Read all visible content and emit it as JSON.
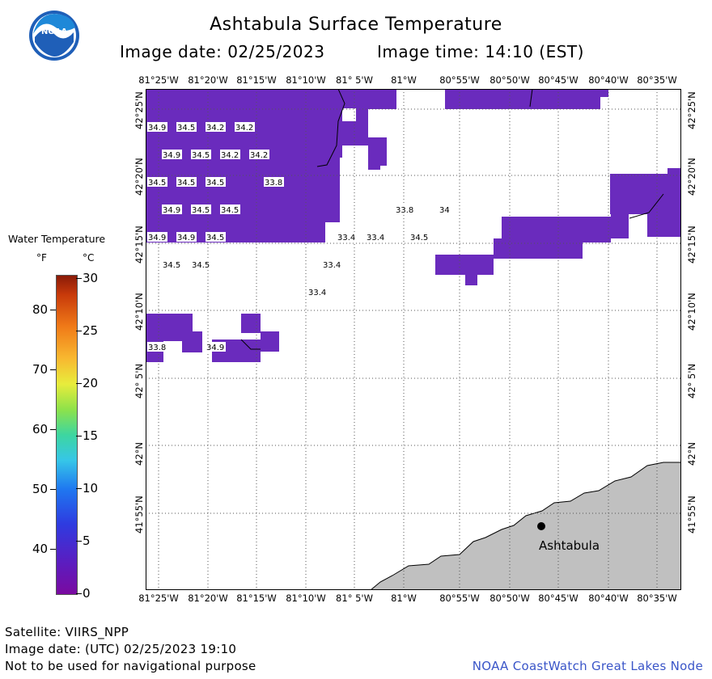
{
  "header": {
    "title": "Ashtabula Surface Temperature",
    "image_date": "Image date: 02/25/2023",
    "image_time": "Image time: 14:10 (EST)",
    "logo_text": "NOAA"
  },
  "axes": {
    "lon_labels": [
      "81°25'W",
      "81°20'W",
      "81°15'W",
      "81°10'W",
      "81° 5'W",
      "81°W",
      "80°55'W",
      "80°50'W",
      "80°45'W",
      "80°40'W",
      "80°35'W"
    ],
    "lat_labels": [
      "42°25'N",
      "42°20'N",
      "42°15'N",
      "42°10'N",
      "42° 5'N",
      "42°N",
      "41°55'N"
    ]
  },
  "legend": {
    "title": "Water Temperature",
    "unit_f": "°F",
    "unit_c": "°C",
    "f_ticks": [
      "80",
      "70",
      "60",
      "50",
      "40"
    ],
    "c_ticks": [
      "30",
      "25",
      "20",
      "15",
      "10",
      "5",
      "0"
    ]
  },
  "map": {
    "land_color": "#c0c0c0",
    "water_color": "#6a2bbd",
    "city_label": "Ashtabula",
    "temperature_labels": [
      {
        "text": "34.9",
        "col": 0,
        "row": 1
      },
      {
        "text": "34.5",
        "col": 2,
        "row": 1
      },
      {
        "text": "34.2",
        "col": 4,
        "row": 1
      },
      {
        "text": "34.2",
        "col": 6,
        "row": 1
      },
      {
        "text": "34.9",
        "col": 1,
        "row": 3
      },
      {
        "text": "34.5",
        "col": 3,
        "row": 3
      },
      {
        "text": "34.2",
        "col": 5,
        "row": 3
      },
      {
        "text": "34.2",
        "col": 7,
        "row": 3
      },
      {
        "text": "34.5",
        "col": 0,
        "row": 5
      },
      {
        "text": "34.5",
        "col": 2,
        "row": 5
      },
      {
        "text": "34.5",
        "col": 4,
        "row": 5
      },
      {
        "text": "33.8",
        "col": 8,
        "row": 5
      },
      {
        "text": "34.9",
        "col": 1,
        "row": 7
      },
      {
        "text": "34.5",
        "col": 3,
        "row": 7
      },
      {
        "text": "34.5",
        "col": 5,
        "row": 7
      },
      {
        "text": "33.8",
        "col": 17,
        "row": 7
      },
      {
        "text": "34.9",
        "col": 0,
        "row": 9
      },
      {
        "text": "34.9",
        "col": 2,
        "row": 9
      },
      {
        "text": "34.5",
        "col": 4,
        "row": 9
      },
      {
        "text": "33.4",
        "col": 13,
        "row": 9
      },
      {
        "text": "33.4",
        "col": 15,
        "row": 9
      },
      {
        "text": "34.5",
        "col": 18,
        "row": 9
      },
      {
        "text": "34",
        "col": 20,
        "row": 7
      },
      {
        "text": "34.5",
        "col": 1,
        "row": 11
      },
      {
        "text": "34.5",
        "col": 3,
        "row": 11
      },
      {
        "text": "33.4",
        "col": 12,
        "row": 11
      },
      {
        "text": "33.4",
        "col": 11,
        "row": 13
      },
      {
        "text": "33.8",
        "col": 0,
        "row": 17
      },
      {
        "text": "34.9",
        "col": 4,
        "row": 17
      }
    ]
  },
  "footer": {
    "satellite": "Satellite: VIIRS_NPP",
    "utc_date": "Image date: (UTC) 02/25/2023  19:10",
    "disclaimer": "Not to be used for navigational purpose",
    "credit": "NOAA CoastWatch Great Lakes Node"
  }
}
